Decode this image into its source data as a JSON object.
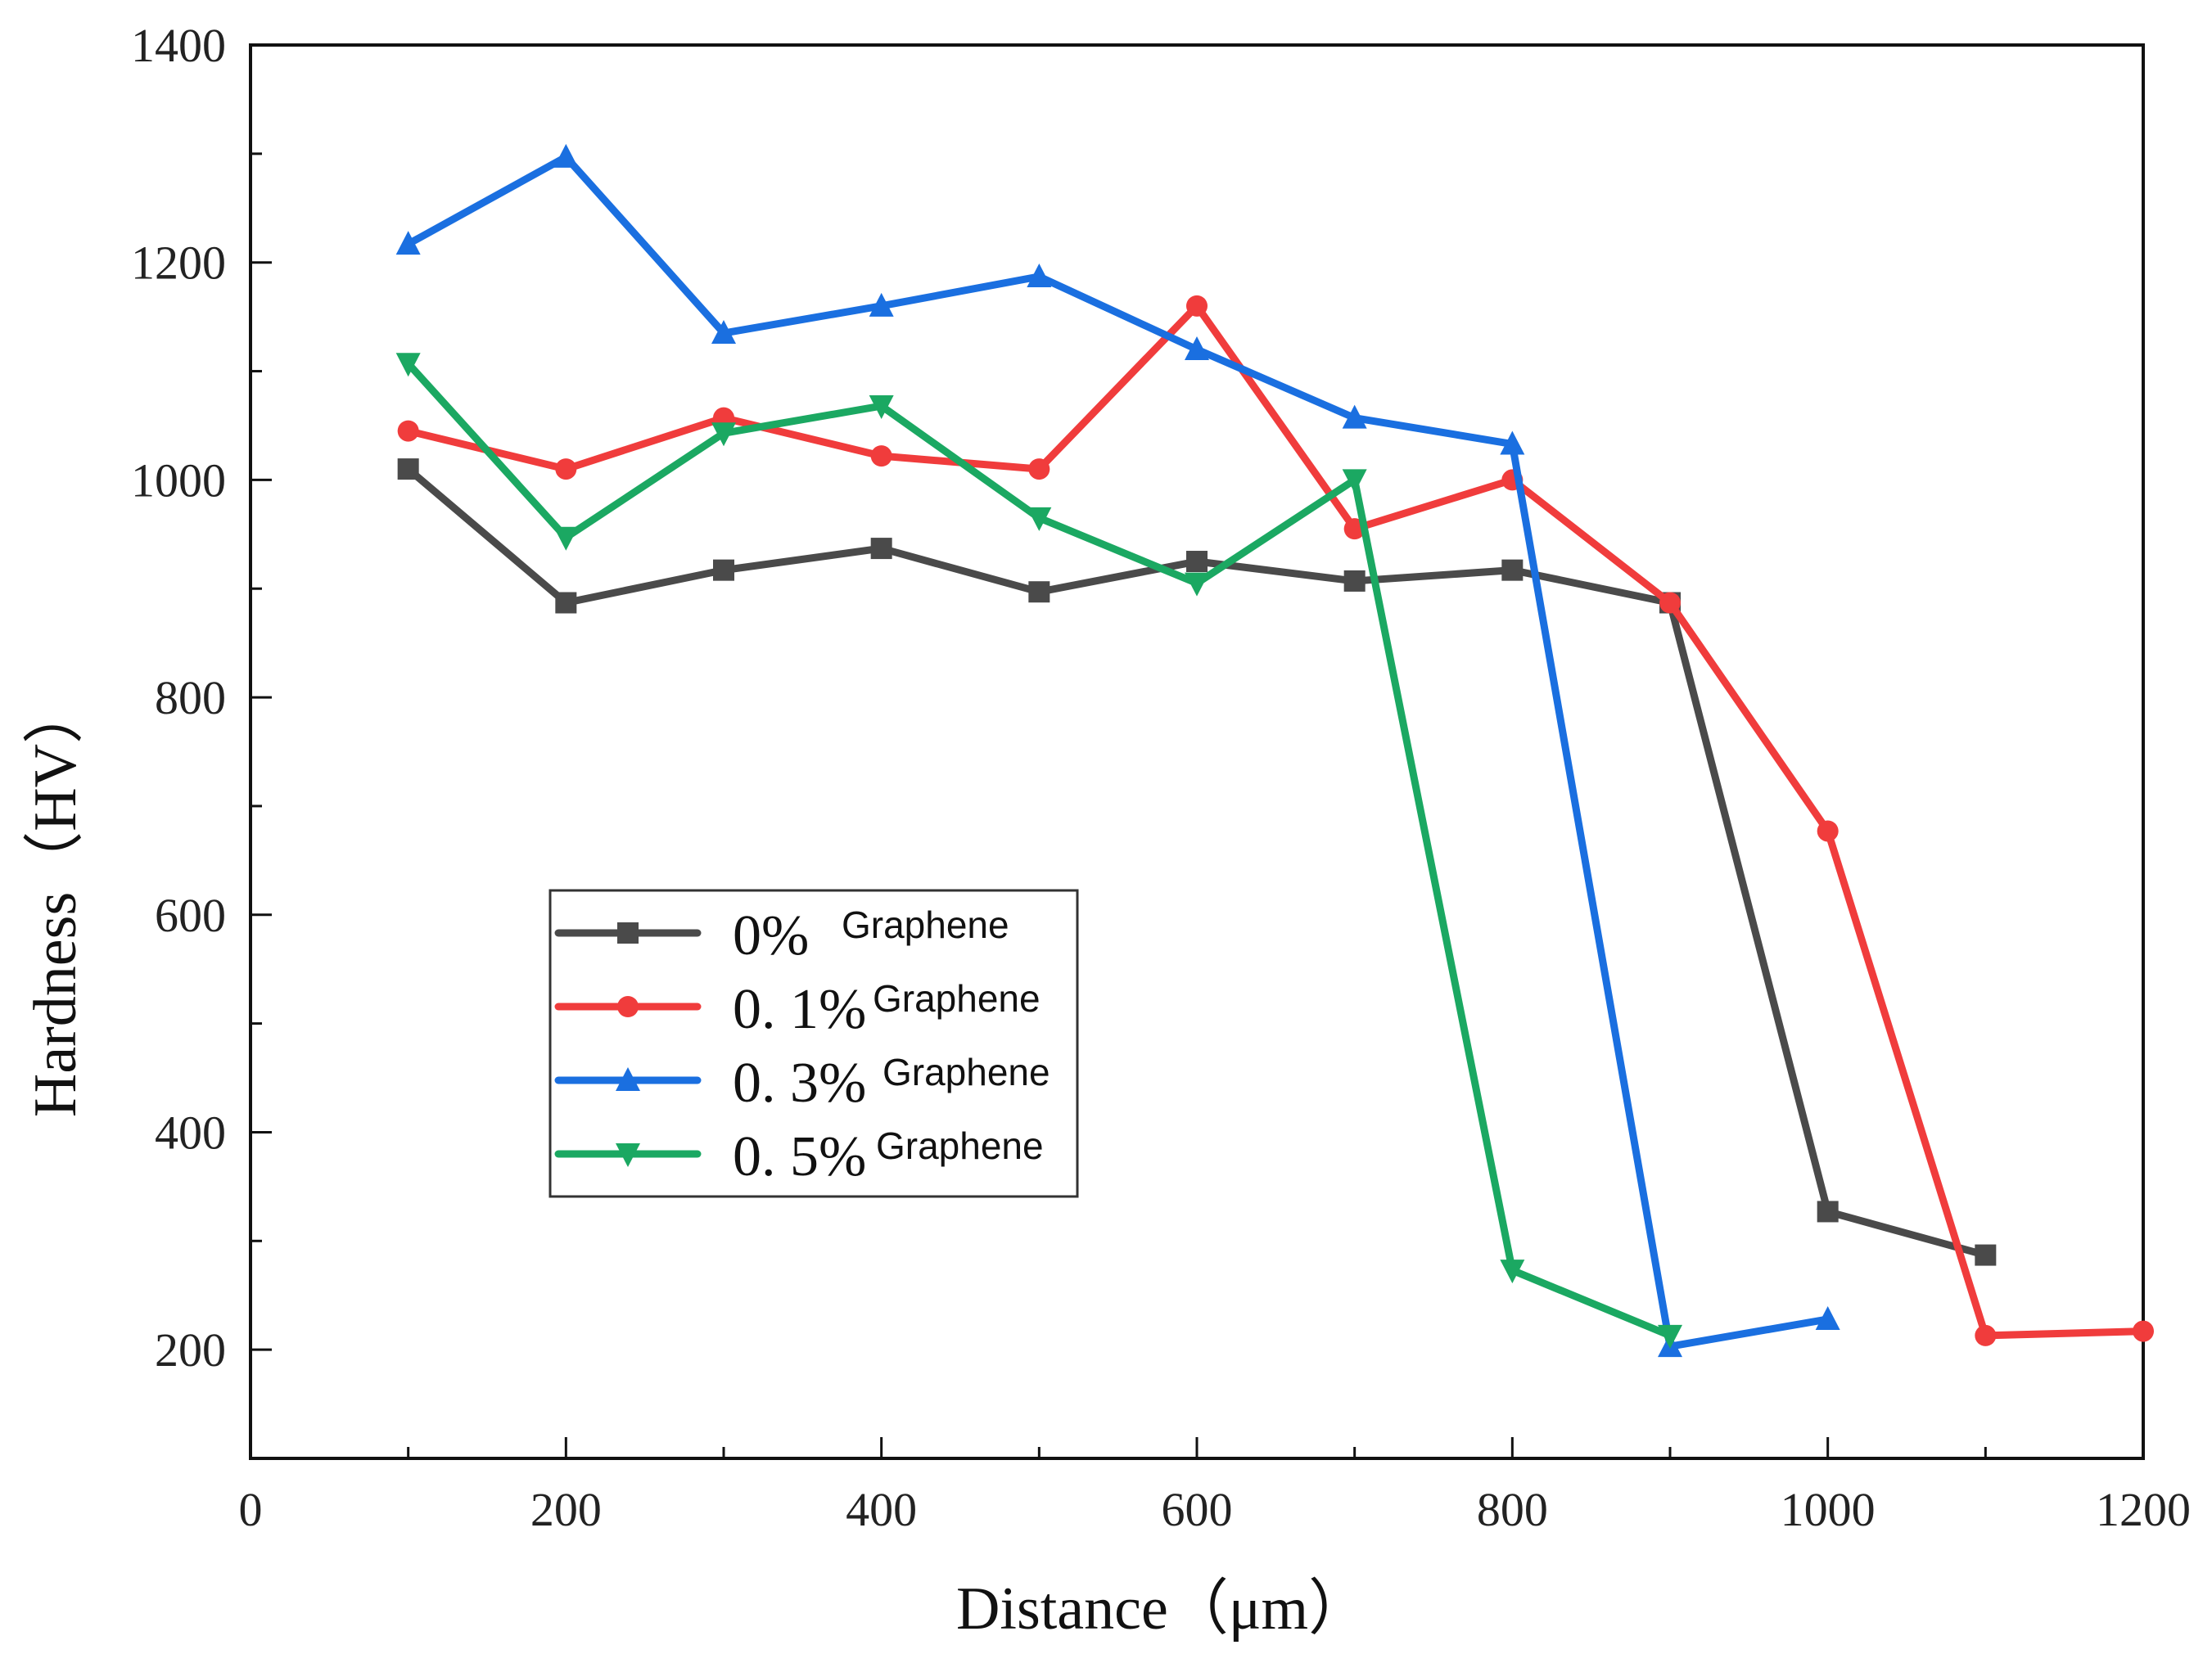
{
  "chart_data": {
    "type": "line",
    "title": "",
    "xlabel": "Distance（μm）",
    "ylabel": "Hardness（HV）",
    "xlim": [
      0,
      1200
    ],
    "ylim": [
      100,
      1400
    ],
    "x_ticks": [
      0,
      200,
      400,
      600,
      800,
      1000,
      1200
    ],
    "y_ticks": [
      200,
      400,
      600,
      800,
      1000,
      1200,
      1400
    ],
    "x_tick_labels": [
      "0",
      "200",
      "400",
      "600",
      "800",
      "1000",
      "1200"
    ],
    "y_tick_labels": [
      "200",
      "400",
      "600",
      "800",
      "1000",
      "1200",
      "1400"
    ],
    "grid": false,
    "legend_position": "lower-left",
    "series": [
      {
        "name": "0% Graphene",
        "legend_pct": "0%",
        "legend_word": "Graphene",
        "color": "#4a4a4a",
        "marker": "square",
        "x": [
          100,
          200,
          300,
          400,
          500,
          600,
          700,
          800,
          900,
          1000,
          1100
        ],
        "y": [
          1010,
          887,
          917,
          937,
          897,
          925,
          907,
          917,
          887,
          327,
          287
        ]
      },
      {
        "name": "0.1% Graphene",
        "legend_pct": "0. 1%",
        "legend_word": "Graphene",
        "color": "#f03c3c",
        "marker": "circle",
        "x": [
          100,
          200,
          300,
          400,
          500,
          600,
          700,
          800,
          900,
          1000,
          1100,
          1200
        ],
        "y": [
          1045,
          1010,
          1057,
          1022,
          1010,
          1160,
          955,
          1000,
          887,
          677,
          213,
          217
        ]
      },
      {
        "name": "0.3% Graphene",
        "legend_pct": "0. 3%",
        "legend_word": "Graphene",
        "color": "#1a6fe0",
        "marker": "triangle-up",
        "x": [
          100,
          200,
          300,
          400,
          500,
          600,
          700,
          800,
          900,
          1000
        ],
        "y": [
          1217,
          1297,
          1135,
          1160,
          1187,
          1120,
          1057,
          1033,
          203,
          228
        ]
      },
      {
        "name": "0.5% Graphene",
        "legend_pct": "0. 5%",
        "legend_word": "Graphene",
        "color": "#1ba862",
        "marker": "triangle-down",
        "x": [
          100,
          200,
          300,
          400,
          500,
          600,
          700,
          800,
          900
        ],
        "y": [
          1107,
          947,
          1043,
          1068,
          965,
          905,
          1000,
          273,
          213
        ]
      }
    ]
  }
}
